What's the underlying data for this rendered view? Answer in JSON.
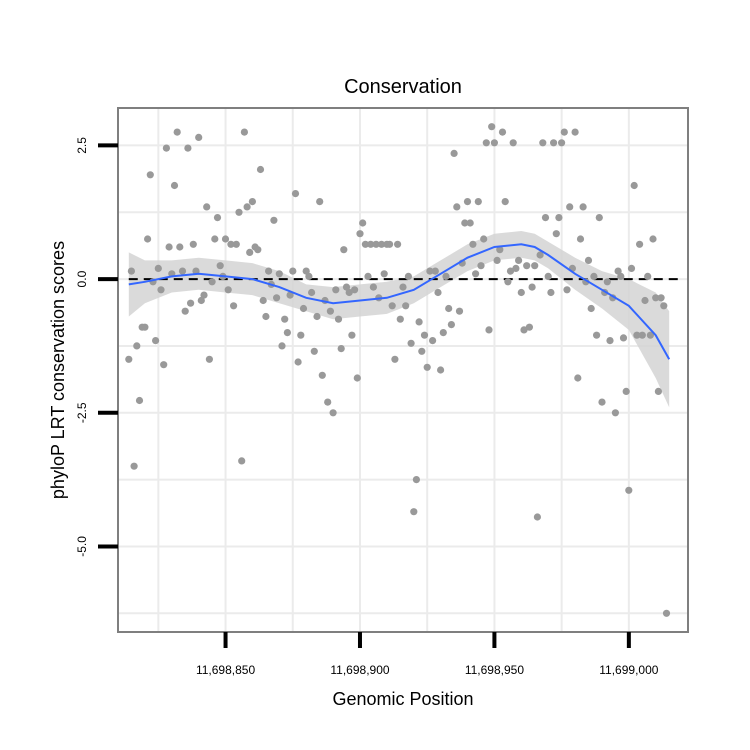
{
  "chart_data": {
    "type": "scatter",
    "title": "Conservation",
    "xlabel": "Genomic Position",
    "ylabel": "phyloP LRT conservation scores",
    "xlim": [
      11698810,
      11699022
    ],
    "ylim": [
      -6.6,
      3.2
    ],
    "x_ticks": [
      11698850,
      11698900,
      11698950,
      11699000
    ],
    "x_tick_labels": [
      "11,698,850",
      "11,698,900",
      "11,698,950",
      "11,699,000"
    ],
    "y_ticks": [
      2.5,
      0.0,
      -2.5,
      -5.0
    ],
    "y_tick_labels": [
      "2.5",
      "0.0",
      "-2.5",
      "-5.0"
    ],
    "grid": true,
    "reference_line": {
      "y": 0,
      "style": "dashed"
    },
    "colors": {
      "points": "#999999",
      "smooth_line": "#3366ff",
      "confidence_band": "#d3d3d3",
      "grid": "#ebebeb",
      "panel_border": "#7f7f7f"
    },
    "points": [
      [
        11698814,
        -1.5
      ],
      [
        11698815,
        0.15
      ],
      [
        11698816,
        -3.5
      ],
      [
        11698817,
        -1.25
      ],
      [
        11698818,
        -2.27
      ],
      [
        11698819,
        -0.9
      ],
      [
        11698820,
        -0.9
      ],
      [
        11698821,
        0.75
      ],
      [
        11698822,
        1.95
      ],
      [
        11698823,
        -0.05
      ],
      [
        11698824,
        -1.15
      ],
      [
        11698825,
        0.2
      ],
      [
        11698826,
        -0.2
      ],
      [
        11698827,
        -1.6
      ],
      [
        11698828,
        2.45
      ],
      [
        11698829,
        0.6
      ],
      [
        11698830,
        0.1
      ],
      [
        11698831,
        1.75
      ],
      [
        11698832,
        2.75
      ],
      [
        11698833,
        0.6
      ],
      [
        11698834,
        0.15
      ],
      [
        11698835,
        -0.6
      ],
      [
        11698836,
        2.45
      ],
      [
        11698837,
        -0.45
      ],
      [
        11698838,
        0.65
      ],
      [
        11698839,
        0.15
      ],
      [
        11698840,
        2.65
      ],
      [
        11698841,
        -0.4
      ],
      [
        11698842,
        -0.3
      ],
      [
        11698843,
        1.35
      ],
      [
        11698844,
        -1.5
      ],
      [
        11698845,
        -0.05
      ],
      [
        11698846,
        0.75
      ],
      [
        11698847,
        1.15
      ],
      [
        11698848,
        0.25
      ],
      [
        11698849,
        0.05
      ],
      [
        11698850,
        0.75
      ],
      [
        11698851,
        -0.2
      ],
      [
        11698852,
        0.65
      ],
      [
        11698853,
        -0.5
      ],
      [
        11698854,
        0.65
      ],
      [
        11698855,
        1.25
      ],
      [
        11698856,
        -3.4
      ],
      [
        11698857,
        2.75
      ],
      [
        11698858,
        1.35
      ],
      [
        11698859,
        0.5
      ],
      [
        11698860,
        1.45
      ],
      [
        11698861,
        0.6
      ],
      [
        11698862,
        0.55
      ],
      [
        11698863,
        2.05
      ],
      [
        11698864,
        -0.4
      ],
      [
        11698865,
        -0.7
      ],
      [
        11698866,
        0.15
      ],
      [
        11698867,
        -0.1
      ],
      [
        11698868,
        1.1
      ],
      [
        11698869,
        -0.35
      ],
      [
        11698870,
        0.1
      ],
      [
        11698871,
        -1.25
      ],
      [
        11698872,
        -0.75
      ],
      [
        11698873,
        -1.0
      ],
      [
        11698874,
        -0.3
      ],
      [
        11698875,
        0.15
      ],
      [
        11698876,
        1.6
      ],
      [
        11698877,
        -1.55
      ],
      [
        11698878,
        -1.05
      ],
      [
        11698879,
        -0.55
      ],
      [
        11698880,
        0.15
      ],
      [
        11698881,
        0.05
      ],
      [
        11698882,
        -0.25
      ],
      [
        11698883,
        -1.35
      ],
      [
        11698884,
        -0.7
      ],
      [
        11698885,
        1.45
      ],
      [
        11698886,
        -1.8
      ],
      [
        11698887,
        -0.4
      ],
      [
        11698888,
        -2.3
      ],
      [
        11698889,
        -0.6
      ],
      [
        11698890,
        -2.5
      ],
      [
        11698891,
        -0.2
      ],
      [
        11698892,
        -0.75
      ],
      [
        11698893,
        -1.3
      ],
      [
        11698894,
        0.55
      ],
      [
        11698895,
        -0.15
      ],
      [
        11698896,
        -0.25
      ],
      [
        11698897,
        -1.05
      ],
      [
        11698898,
        -0.2
      ],
      [
        11698899,
        -1.85
      ],
      [
        11698900,
        0.85
      ],
      [
        11698901,
        1.05
      ],
      [
        11698902,
        0.65
      ],
      [
        11698903,
        0.05
      ],
      [
        11698904,
        0.65
      ],
      [
        11698905,
        -0.15
      ],
      [
        11698906,
        0.65
      ],
      [
        11698907,
        -0.35
      ],
      [
        11698908,
        0.65
      ],
      [
        11698909,
        0.1
      ],
      [
        11698910,
        0.65
      ],
      [
        11698911,
        0.65
      ],
      [
        11698912,
        -0.5
      ],
      [
        11698913,
        -1.5
      ],
      [
        11698914,
        0.65
      ],
      [
        11698915,
        -0.75
      ],
      [
        11698916,
        -0.15
      ],
      [
        11698917,
        -0.5
      ],
      [
        11698918,
        0.05
      ],
      [
        11698919,
        -1.2
      ],
      [
        11698920,
        -4.35
      ],
      [
        11698921,
        -3.75
      ],
      [
        11698922,
        -0.8
      ],
      [
        11698923,
        -1.35
      ],
      [
        11698924,
        -1.05
      ],
      [
        11698925,
        -1.65
      ],
      [
        11698926,
        0.15
      ],
      [
        11698927,
        -1.15
      ],
      [
        11698928,
        0.15
      ],
      [
        11698929,
        -0.25
      ],
      [
        11698930,
        -1.7
      ],
      [
        11698931,
        -1.0
      ],
      [
        11698932,
        0.05
      ],
      [
        11698933,
        -0.55
      ],
      [
        11698934,
        -0.85
      ],
      [
        11698935,
        2.35
      ],
      [
        11698936,
        1.35
      ],
      [
        11698937,
        -0.6
      ],
      [
        11698938,
        0.3
      ],
      [
        11698939,
        1.05
      ],
      [
        11698940,
        1.45
      ],
      [
        11698941,
        1.05
      ],
      [
        11698942,
        0.65
      ],
      [
        11698943,
        0.1
      ],
      [
        11698944,
        1.45
      ],
      [
        11698945,
        0.25
      ],
      [
        11698946,
        0.75
      ],
      [
        11698947,
        2.55
      ],
      [
        11698948,
        -0.95
      ],
      [
        11698949,
        2.85
      ],
      [
        11698950,
        2.55
      ],
      [
        11698951,
        0.35
      ],
      [
        11698952,
        0.55
      ],
      [
        11698953,
        2.75
      ],
      [
        11698954,
        1.45
      ],
      [
        11698955,
        -0.05
      ],
      [
        11698956,
        0.15
      ],
      [
        11698957,
        2.55
      ],
      [
        11698958,
        0.2
      ],
      [
        11698959,
        0.35
      ],
      [
        11698960,
        -0.25
      ],
      [
        11698961,
        -0.95
      ],
      [
        11698962,
        0.25
      ],
      [
        11698963,
        -0.9
      ],
      [
        11698964,
        -0.15
      ],
      [
        11698965,
        0.25
      ],
      [
        11698966,
        -4.45
      ],
      [
        11698967,
        0.45
      ],
      [
        11698968,
        2.55
      ],
      [
        11698969,
        1.15
      ],
      [
        11698970,
        0.05
      ],
      [
        11698971,
        -0.25
      ],
      [
        11698972,
        2.55
      ],
      [
        11698973,
        0.85
      ],
      [
        11698974,
        1.15
      ],
      [
        11698975,
        2.55
      ],
      [
        11698976,
        2.75
      ],
      [
        11698977,
        -0.2
      ],
      [
        11698978,
        1.35
      ],
      [
        11698979,
        0.2
      ],
      [
        11698980,
        2.75
      ],
      [
        11698981,
        -1.85
      ],
      [
        11698982,
        0.75
      ],
      [
        11698983,
        1.35
      ],
      [
        11698984,
        -0.05
      ],
      [
        11698985,
        0.35
      ],
      [
        11698986,
        -0.55
      ],
      [
        11698987,
        0.05
      ],
      [
        11698988,
        -1.05
      ],
      [
        11698989,
        1.15
      ],
      [
        11698990,
        -2.3
      ],
      [
        11698991,
        -0.25
      ],
      [
        11698992,
        -0.05
      ],
      [
        11698993,
        -1.15
      ],
      [
        11698994,
        -0.35
      ],
      [
        11698995,
        -2.5
      ],
      [
        11698996,
        0.15
      ],
      [
        11698997,
        0.05
      ],
      [
        11698998,
        -1.1
      ],
      [
        11698999,
        -2.1
      ],
      [
        11699000,
        -3.95
      ],
      [
        11699001,
        0.2
      ],
      [
        11699002,
        1.75
      ],
      [
        11699003,
        -1.05
      ],
      [
        11699004,
        0.65
      ],
      [
        11699005,
        -1.05
      ],
      [
        11699006,
        -0.4
      ],
      [
        11699007,
        0.05
      ],
      [
        11699008,
        -1.05
      ],
      [
        11699009,
        0.75
      ],
      [
        11699010,
        -0.35
      ],
      [
        11699011,
        -2.1
      ],
      [
        11699012,
        -0.35
      ],
      [
        11699013,
        -0.5
      ],
      [
        11699014,
        -6.25
      ]
    ],
    "smooth": {
      "x": [
        11698814,
        11698820,
        11698830,
        11698840,
        11698850,
        11698860,
        11698870,
        11698880,
        11698890,
        11698900,
        11698910,
        11698920,
        11698930,
        11698940,
        11698950,
        11698960,
        11698965,
        11698970,
        11698980,
        11698990,
        11699000,
        11699010,
        11699015
      ],
      "y": [
        -0.1,
        -0.05,
        0.05,
        0.1,
        0.05,
        0.0,
        -0.15,
        -0.35,
        -0.45,
        -0.4,
        -0.35,
        -0.2,
        0.1,
        0.4,
        0.6,
        0.65,
        0.6,
        0.45,
        0.1,
        -0.2,
        -0.5,
        -1.05,
        -1.5
      ],
      "lower": [
        -0.7,
        -0.45,
        -0.25,
        -0.2,
        -0.25,
        -0.3,
        -0.45,
        -0.6,
        -0.75,
        -0.7,
        -0.65,
        -0.45,
        -0.15,
        0.15,
        0.35,
        0.4,
        0.35,
        0.2,
        -0.2,
        -0.55,
        -0.95,
        -1.85,
        -2.4
      ],
      "upper": [
        0.5,
        0.35,
        0.35,
        0.4,
        0.35,
        0.3,
        0.15,
        -0.1,
        -0.15,
        -0.1,
        -0.05,
        0.05,
        0.35,
        0.65,
        0.85,
        0.9,
        0.85,
        0.7,
        0.4,
        0.15,
        0.0,
        -0.25,
        -0.6
      ]
    }
  }
}
